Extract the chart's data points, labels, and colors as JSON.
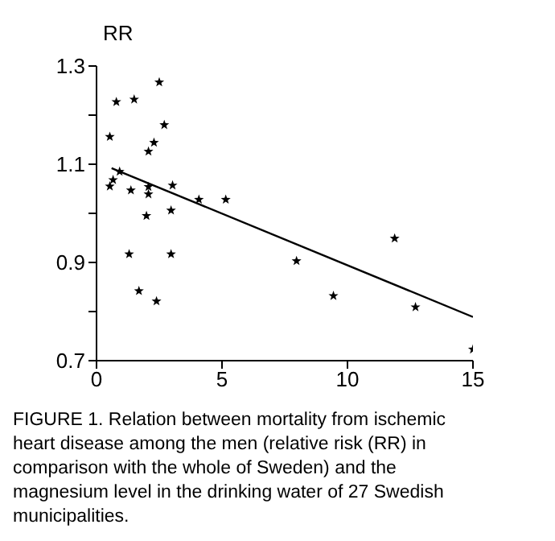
{
  "chart_data": {
    "type": "scatter",
    "ylabel": "RR",
    "xlim": [
      0,
      15
    ],
    "ylim": [
      0.7,
      1.3
    ],
    "xticks": [
      0,
      5,
      10,
      15
    ],
    "yticks": [
      0.7,
      {
        "value": 0.8,
        "label": null
      },
      0.9,
      {
        "value": 1.0,
        "label": null
      },
      1.1,
      {
        "value": 1.2,
        "label": null
      },
      1.3
    ],
    "grid": false,
    "legend": false,
    "marker": "star",
    "series": [
      {
        "color": "#000000",
        "x": [
          2.5,
          0.79,
          1.5,
          2.7,
          0.53,
          2.29,
          2.07,
          0.92,
          0.66,
          0.53,
          1.37,
          2.07,
          2.07,
          3.03,
          4.08,
          5.15,
          2.97,
          1.99,
          1.3,
          2.97,
          1.69,
          2.39,
          7.97,
          11.88,
          9.44,
          12.71,
          15
        ],
        "values": [
          1.267,
          1.227,
          1.232,
          1.18,
          1.156,
          1.144,
          1.126,
          1.085,
          1.068,
          1.055,
          1.047,
          1.054,
          1.039,
          1.057,
          1.028,
          1.028,
          1.006,
          0.995,
          0.917,
          0.917,
          0.842,
          0.821,
          0.903,
          0.949,
          0.832,
          0.809,
          0.723
        ]
      },
      {
        "type": "line",
        "color": "#000000",
        "line_style": "solid",
        "marker": "none",
        "x": [
          0.6,
          15
        ],
        "values": [
          1.092,
          0.789
        ]
      }
    ],
    "annotations": [
      "FIGURE 1.  Relation between mortality from ischemic heart disease among the men (relative risk (RR) in comparison with the whole of Sweden) and the magnesium level in the drinking water of 27 Swedish municipalities."
    ]
  }
}
